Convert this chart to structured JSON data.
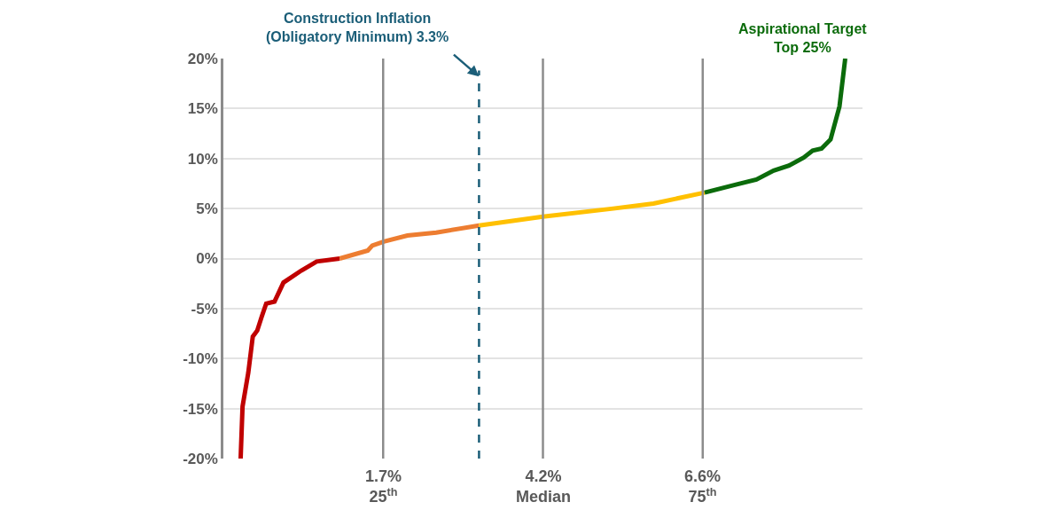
{
  "chart_data": {
    "type": "line",
    "xlim": [
      0,
      100
    ],
    "ylim": [
      -20,
      20
    ],
    "yticks": [
      {
        "value": -20,
        "label": "-20%"
      },
      {
        "value": -15,
        "label": "-15%"
      },
      {
        "value": -10,
        "label": "-10%"
      },
      {
        "value": -5,
        "label": "-5%"
      },
      {
        "value": 0,
        "label": "0%"
      },
      {
        "value": 5,
        "label": "5%"
      },
      {
        "value": 10,
        "label": "10%"
      },
      {
        "value": 15,
        "label": "15%"
      },
      {
        "value": 20,
        "label": "20%"
      }
    ],
    "tick_labels": "y",
    "grid": "y",
    "marker": "none",
    "line_style": "solid",
    "series": [
      {
        "color": "#c00000",
        "x": [
          2.7,
          3.0,
          3.9,
          4.6,
          5.3,
          6.0,
          6.7,
          8.0,
          9.4,
          12.2,
          14.6,
          18.2
        ],
        "values": [
          -20,
          -14.8,
          -11.4,
          -7.8,
          -7.2,
          -5.8,
          -4.5,
          -4.3,
          -2.4,
          -1.2,
          -0.3,
          0
        ]
      },
      {
        "color": "#ed7d31",
        "x": [
          18.2,
          22.6,
          23.3,
          25.1,
          28.8,
          33.3,
          40
        ],
        "values": [
          0,
          0.8,
          1.3,
          1.7,
          2.3,
          2.6,
          3.3
        ]
      },
      {
        "color": "#ffc000",
        "x": [
          40,
          50,
          61,
          67.3,
          75.3
        ],
        "values": [
          3.3,
          4.2,
          5.0,
          5.5,
          6.6
        ]
      },
      {
        "color": "#0b6b0b",
        "x": [
          75.3,
          80.2,
          83.4,
          86.1,
          88.5,
          90.8,
          92.2,
          93.6,
          95,
          96.4,
          97.3
        ],
        "values": [
          6.6,
          7.4,
          7.9,
          8.8,
          9.3,
          10.1,
          10.8,
          11.0,
          11.9,
          15.2,
          20
        ]
      }
    ],
    "ref_lines": [
      {
        "axis": "x",
        "value": 25,
        "label": "1.7%\n25$^{th}$",
        "color": "#8c8c8c",
        "line_style": "solid"
      },
      {
        "axis": "x",
        "value": 40,
        "label": "Construction Inflation\n(Obligatory Minimum) 3.3%",
        "color": "#1b5e78",
        "line_style": "dashed"
      },
      {
        "axis": "x",
        "value": 50,
        "label": "4.2%\nMedian",
        "color": "#8c8c8c",
        "line_style": "solid"
      },
      {
        "axis": "x",
        "value": 75,
        "label": "6.6%\n75$^{th}$",
        "color": "#8c8c8c",
        "line_style": "solid"
      }
    ],
    "annotations": [
      "Aspirational Target\nTop 25%"
    ]
  }
}
